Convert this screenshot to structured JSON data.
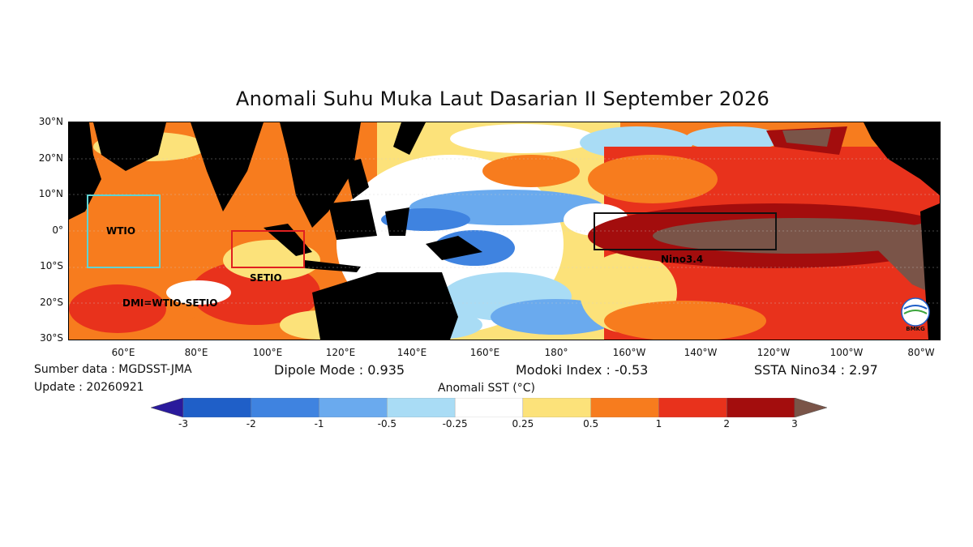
{
  "title": "Anomali Suhu Muka Laut Dasarian II September 2026",
  "lat_labels": [
    "30°N",
    "20°N",
    "10°N",
    "0°",
    "10°S",
    "20°S",
    "30°S"
  ],
  "lon_labels": [
    "60°E",
    "80°E",
    "100°E",
    "120°E",
    "140°E",
    "160°E",
    "180°",
    "160°W",
    "140°W",
    "120°W",
    "100°W",
    "80°W"
  ],
  "regions": {
    "wtio": "WTIO",
    "setio": "SETIO",
    "nino34": "Nino3.4",
    "dmi": "DMI=WTIO-SETIO"
  },
  "logo_text": "BMKG",
  "info": {
    "source": "Sumber data : MGDSST-JMA",
    "update": "Update : 20260921",
    "dipole": "Dipole Mode : 0.935",
    "modoki": "Modoki Index : -0.53",
    "nino34": "SSTA Nino34 : 2.97"
  },
  "colorbar": {
    "title": "Anomali SST (°C)",
    "ticks": [
      "-3",
      "-2",
      "-1",
      "-0.5",
      "-0.25",
      "0.25",
      "0.5",
      "1",
      "2",
      "3"
    ],
    "colors": [
      "#2a1a9c",
      "#1f5fc8",
      "#3f83e0",
      "#6aaaee",
      "#a9dcf5",
      "#ffffff",
      "#fce27a",
      "#f77c1e",
      "#e8321c",
      "#a30d0d",
      "#7a5448"
    ]
  },
  "colors": {
    "land": "#000000",
    "wtio_box": "#5fd3d3",
    "setio_box": "#e02020",
    "nino_box": "#111111"
  }
}
